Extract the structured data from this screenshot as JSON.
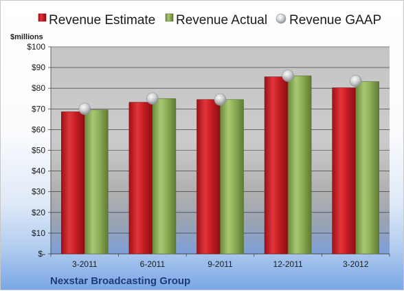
{
  "colors": {
    "estimate": "#c81e24",
    "actual": "#8fb058",
    "gaap": "#c9ccd1",
    "footer": "#1f3a7a"
  },
  "chart_data": {
    "type": "bar",
    "title": "",
    "ylabel": "$millions",
    "xlabel": "",
    "categories": [
      "3-2011",
      "6-2011",
      "9-2011",
      "12-2011",
      "3-2012"
    ],
    "ylim": [
      0,
      100
    ],
    "yticks": [
      "$-",
      "$10",
      "$20",
      "$30",
      "$40",
      "$50",
      "$60",
      "$70",
      "$80",
      "$90",
      "$100"
    ],
    "grid": true,
    "legend_position": "top",
    "series": [
      {
        "name": "Revenue Estimate",
        "kind": "bar",
        "values": [
          68.6,
          73.2,
          74.5,
          85.5,
          80.2
        ]
      },
      {
        "name": "Revenue Actual",
        "kind": "bar",
        "values": [
          69.5,
          75.0,
          74.5,
          86.0,
          83.2
        ]
      },
      {
        "name": "Revenue GAAP",
        "kind": "marker",
        "values": [
          70.0,
          75.0,
          74.5,
          86.0,
          83.5
        ]
      }
    ],
    "footer": "Nexstar Broadcasting Group"
  }
}
